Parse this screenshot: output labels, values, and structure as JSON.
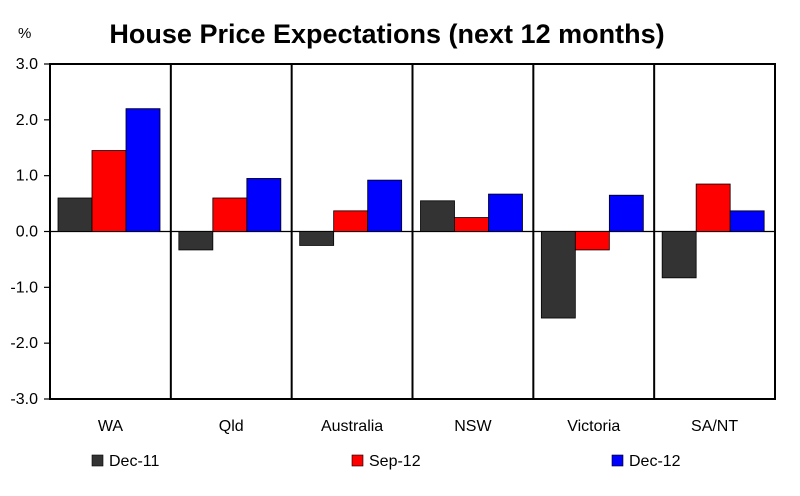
{
  "chart_data": {
    "type": "bar",
    "title": "House Price Expectations (next 12 months)",
    "unit_label": "%",
    "categories": [
      "WA",
      "Qld",
      "Australia",
      "NSW",
      "Victoria",
      "SA/NT"
    ],
    "series": [
      {
        "name": "Dec-11",
        "color": "#333333",
        "values": [
          0.6,
          -0.33,
          -0.25,
          0.55,
          -1.55,
          -0.83
        ]
      },
      {
        "name": "Sep-12",
        "color": "#ff0000",
        "values": [
          1.45,
          0.6,
          0.37,
          0.25,
          -0.33,
          0.85
        ]
      },
      {
        "name": "Dec-12",
        "color": "#0000ff",
        "values": [
          2.2,
          0.95,
          0.92,
          0.67,
          0.65,
          0.37
        ]
      }
    ],
    "ylim": [
      -3.0,
      3.0
    ],
    "yticks": [
      "3.0",
      "2.0",
      "1.0",
      "0.0",
      "-1.0",
      "-2.0",
      "-3.0"
    ],
    "ytick_values": [
      3,
      2,
      1,
      0,
      -1,
      -2,
      -3
    ],
    "grid": false,
    "legend_position": "bottom"
  }
}
